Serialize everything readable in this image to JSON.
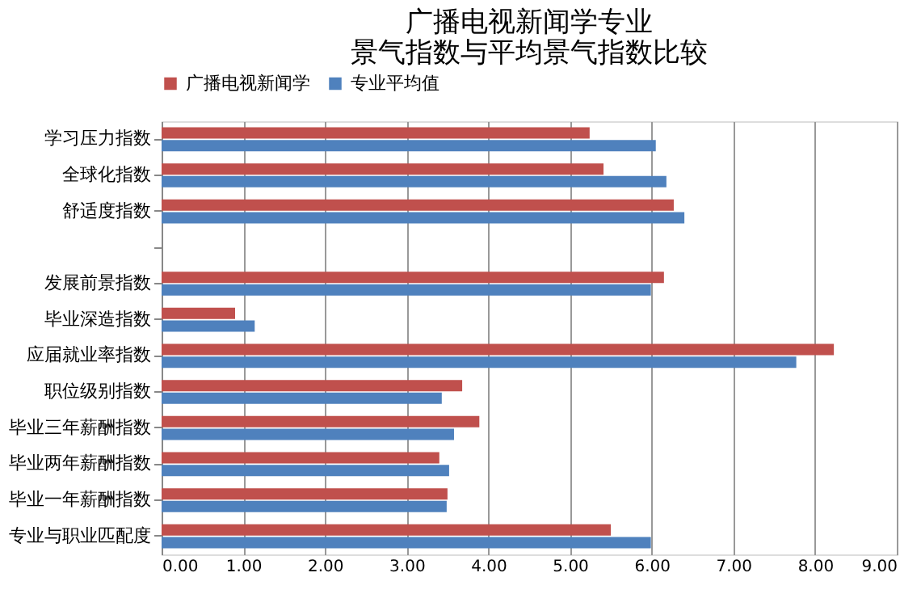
{
  "chart_data": {
    "type": "bar",
    "orientation": "horizontal",
    "title": [
      "广播电视新闻学专业",
      "景气指数与平均景气指数比较"
    ],
    "categories": [
      "学习压力指数",
      "全球化指数",
      "舒适度指数",
      null,
      "发展前景指数",
      "毕业深造指数",
      "应届就业率指数",
      "职位级别指数",
      "毕业三年薪酬指数",
      "毕业两年薪酬指数",
      "毕业一年薪酬指数",
      "专业与职业匹配度"
    ],
    "series": [
      {
        "name": "广播电视新闻学",
        "color": "#c0504d",
        "values": [
          5.24,
          5.41,
          6.27,
          null,
          6.15,
          0.9,
          8.23,
          3.68,
          3.89,
          3.4,
          3.5,
          5.5
        ]
      },
      {
        "name": "专业平均值",
        "color": "#4f81bd",
        "values": [
          6.05,
          6.18,
          6.4,
          null,
          5.99,
          1.14,
          7.77,
          3.43,
          3.58,
          3.52,
          3.49,
          5.99
        ]
      }
    ],
    "xlim": [
      0,
      9
    ],
    "xticks": [
      {
        "value": 0,
        "label": "0.00"
      },
      {
        "value": 1,
        "label": "1.00"
      },
      {
        "value": 2,
        "label": "2.00"
      },
      {
        "value": 3,
        "label": "3.00"
      },
      {
        "value": 4,
        "label": "4.00"
      },
      {
        "value": 5,
        "label": "5.00"
      },
      {
        "value": 6,
        "label": "6.00"
      },
      {
        "value": 7,
        "label": "7.00"
      },
      {
        "value": 8,
        "label": "8.00"
      },
      {
        "value": 9,
        "label": "9.00"
      }
    ],
    "grid": "x",
    "legend": "top"
  }
}
